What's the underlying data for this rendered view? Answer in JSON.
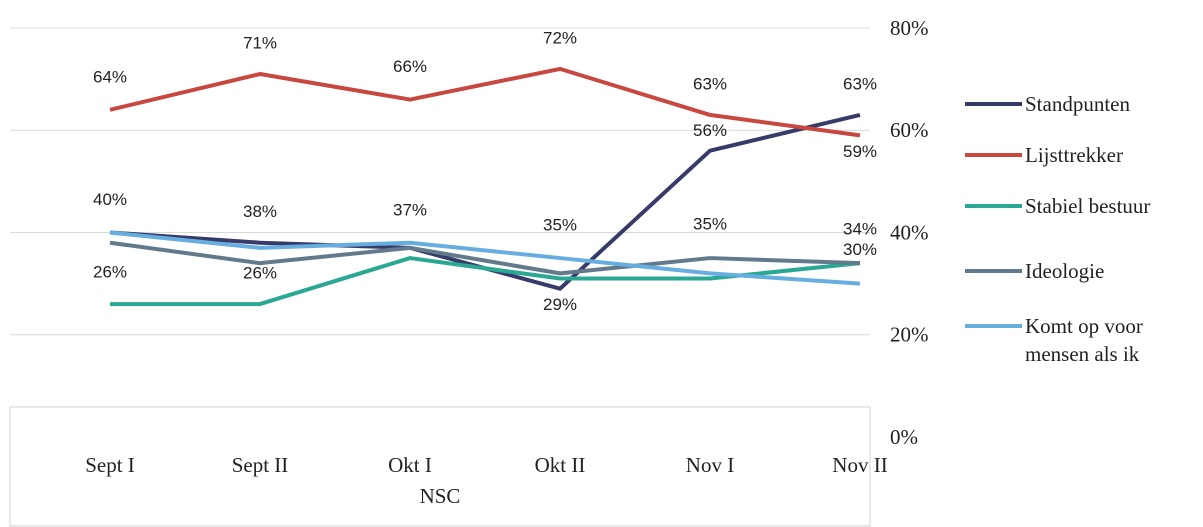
{
  "chart_data": {
    "type": "line",
    "categories": [
      "Sept I",
      "Sept II",
      "Okt I",
      "Okt II",
      "Nov I",
      "Nov II"
    ],
    "group_label": "NSC",
    "series": [
      {
        "name": "Standpunten",
        "color": "#363b69",
        "values": [
          40,
          38,
          37,
          29,
          56,
          63
        ],
        "value_labels": [
          "40%",
          "38%",
          "37%",
          "29%",
          "56%",
          "63%"
        ]
      },
      {
        "name": "Lijsttrekker",
        "color": "#c8473e",
        "values": [
          64,
          71,
          66,
          72,
          63,
          59
        ],
        "value_labels": [
          "64%",
          "71%",
          "66%",
          "72%",
          "63%",
          "59%"
        ]
      },
      {
        "name": "Stabiel bestuur",
        "color": "#2aa894",
        "values": [
          26,
          26,
          35,
          31,
          31,
          34
        ],
        "value_labels": [
          "26%",
          "26%",
          null,
          null,
          null,
          null
        ]
      },
      {
        "name": "Ideologie",
        "color": "#627a8c",
        "values": [
          38,
          34,
          37,
          32,
          35,
          34
        ],
        "value_labels": [
          null,
          null,
          null,
          null,
          "35%",
          "34%"
        ]
      },
      {
        "name": "Komt op voor mensen als ik",
        "color": "#67aee0",
        "values": [
          40,
          37,
          38,
          35,
          32,
          30
        ],
        "value_labels": [
          null,
          null,
          null,
          "35%",
          null,
          "30%"
        ]
      }
    ],
    "ylim": [
      0,
      80
    ],
    "yticks": [
      {
        "value": 0,
        "label": "0%"
      },
      {
        "value": 20,
        "label": "20%"
      },
      {
        "value": 40,
        "label": "40%"
      },
      {
        "value": 60,
        "label": "60%"
      },
      {
        "value": 80,
        "label": "80%"
      }
    ],
    "y_axis_side": "right",
    "grid": true,
    "legend": "right"
  }
}
